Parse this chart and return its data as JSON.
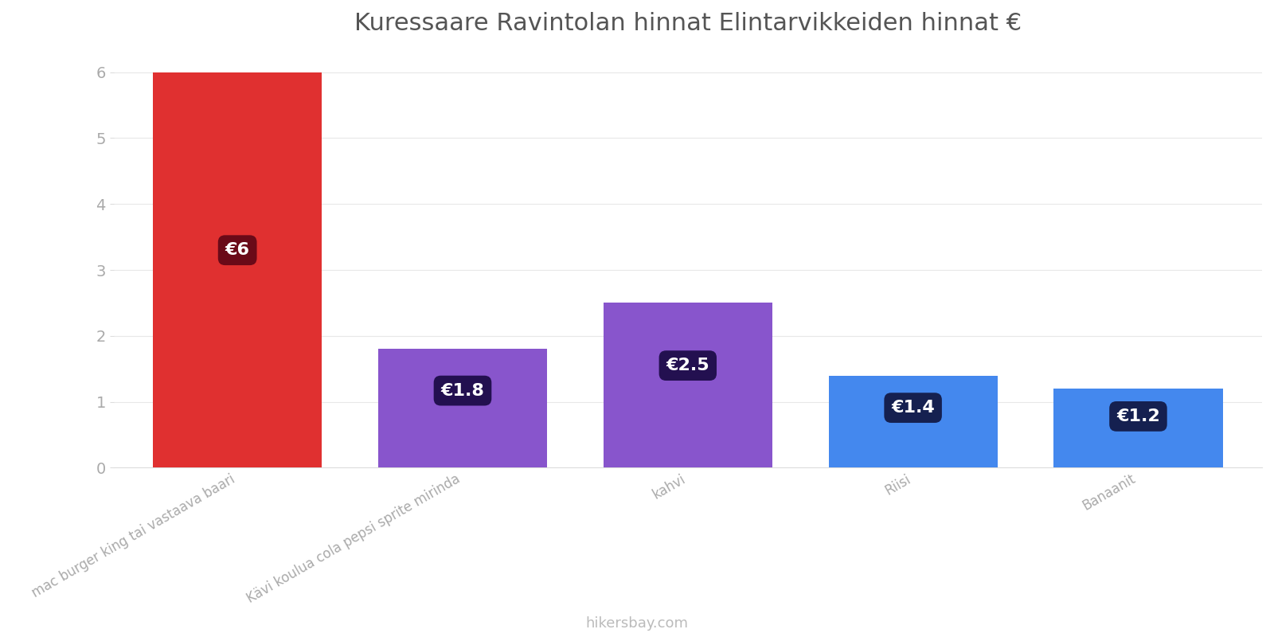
{
  "title": "Kuressaare Ravintolan hinnat Elintarvikkeiden hinnat €",
  "categories": [
    "mac burger king tai vastaava baari",
    "Kävi koulua cola pepsi sprite mirinda",
    "kahvi",
    "Riisi",
    "Banaanit"
  ],
  "values": [
    6.0,
    1.8,
    2.5,
    1.4,
    1.2
  ],
  "bar_colors": [
    "#e03030",
    "#8855cc",
    "#8855cc",
    "#4488ee",
    "#4488ee"
  ],
  "label_texts": [
    "€6",
    "€1.8",
    "€2.5",
    "€1.4",
    "€1.2"
  ],
  "label_box_colors": [
    "#6a0a18",
    "#231050",
    "#231050",
    "#152050",
    "#152050"
  ],
  "ylim": [
    0,
    6.3
  ],
  "yticks": [
    0,
    1,
    2,
    3,
    4,
    5,
    6
  ],
  "footer_text": "hikersbay.com",
  "background_color": "#ffffff",
  "title_fontsize": 22,
  "label_fontsize": 16,
  "tick_fontsize": 14,
  "footer_fontsize": 13,
  "bar_width": 0.75,
  "x_positions": [
    0,
    1,
    2,
    3,
    4
  ]
}
